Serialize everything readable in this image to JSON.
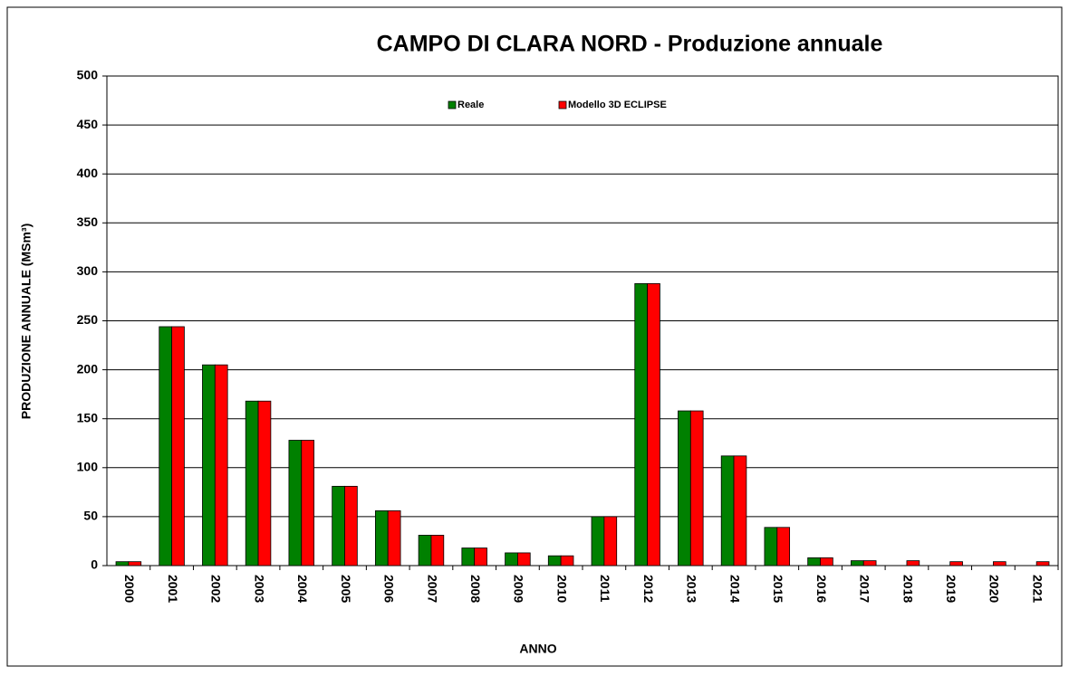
{
  "chart_data": {
    "type": "bar",
    "title": "CAMPO DI CLARA NORD - Produzione annuale",
    "x_label": "ANNO",
    "y_label": "PRODUZIONE ANNUALE (MSm³)",
    "categories": [
      "2000",
      "2001",
      "2002",
      "2003",
      "2004",
      "2005",
      "2006",
      "2007",
      "2008",
      "2009",
      "2010",
      "2011",
      "2012",
      "2013",
      "2014",
      "2015",
      "2016",
      "2017",
      "2018",
      "2019",
      "2020",
      "2021"
    ],
    "series": [
      {
        "name": "Reale",
        "color": "#008000",
        "values": [
          4,
          244,
          205,
          168,
          128,
          81,
          56,
          31,
          18,
          13,
          10,
          50,
          288,
          158,
          112,
          39,
          8,
          5,
          null,
          null,
          null,
          null
        ]
      },
      {
        "name": "Modello 3D ECLIPSE",
        "color": "#ff0000",
        "values": [
          4,
          244,
          205,
          168,
          128,
          81,
          56,
          31,
          18,
          13,
          10,
          50,
          288,
          158,
          112,
          39,
          8,
          5,
          5,
          4,
          4,
          4
        ]
      }
    ],
    "ylim": [
      0,
      500
    ],
    "yticks": [
      0,
      50,
      100,
      150,
      200,
      250,
      300,
      350,
      400,
      450,
      500
    ],
    "grid": true
  }
}
